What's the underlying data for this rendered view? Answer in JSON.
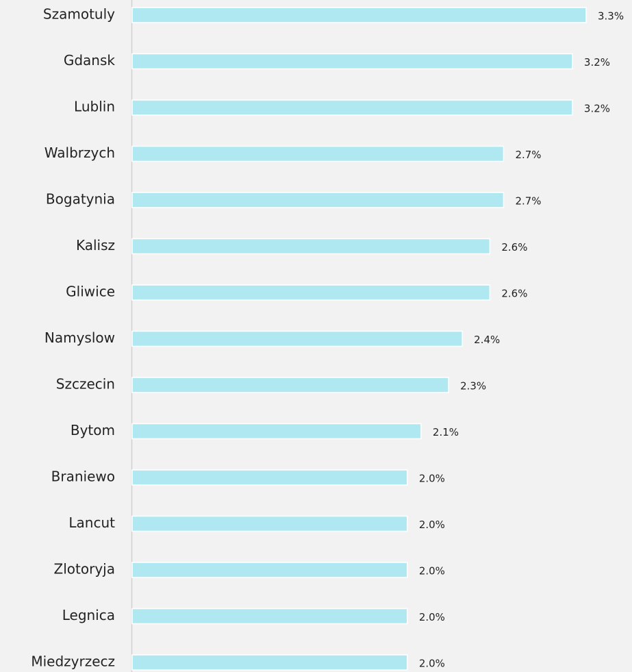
{
  "chart_data": {
    "type": "bar",
    "orientation": "horizontal",
    "categories": [
      "Szamotuly",
      "Gdansk",
      "Lublin",
      "Walbrzych",
      "Bogatynia",
      "Kalisz",
      "Gliwice",
      "Namyslow",
      "Szczecin",
      "Bytom",
      "Braniewo",
      "Lancut",
      "Zlotoryja",
      "Legnica",
      "Miedzyrzecz"
    ],
    "values": [
      3.3,
      3.2,
      3.2,
      2.7,
      2.7,
      2.6,
      2.6,
      2.4,
      2.3,
      2.1,
      2.0,
      2.0,
      2.0,
      2.0,
      2.0
    ],
    "value_labels": [
      "3.3%",
      "3.2%",
      "3.2%",
      "2.7%",
      "2.7%",
      "2.6%",
      "2.6%",
      "2.4%",
      "2.3%",
      "2.1%",
      "2.0%",
      "2.0%",
      "2.0%",
      "2.0%",
      "2.0%"
    ],
    "color": "#b0e8f2"
  }
}
